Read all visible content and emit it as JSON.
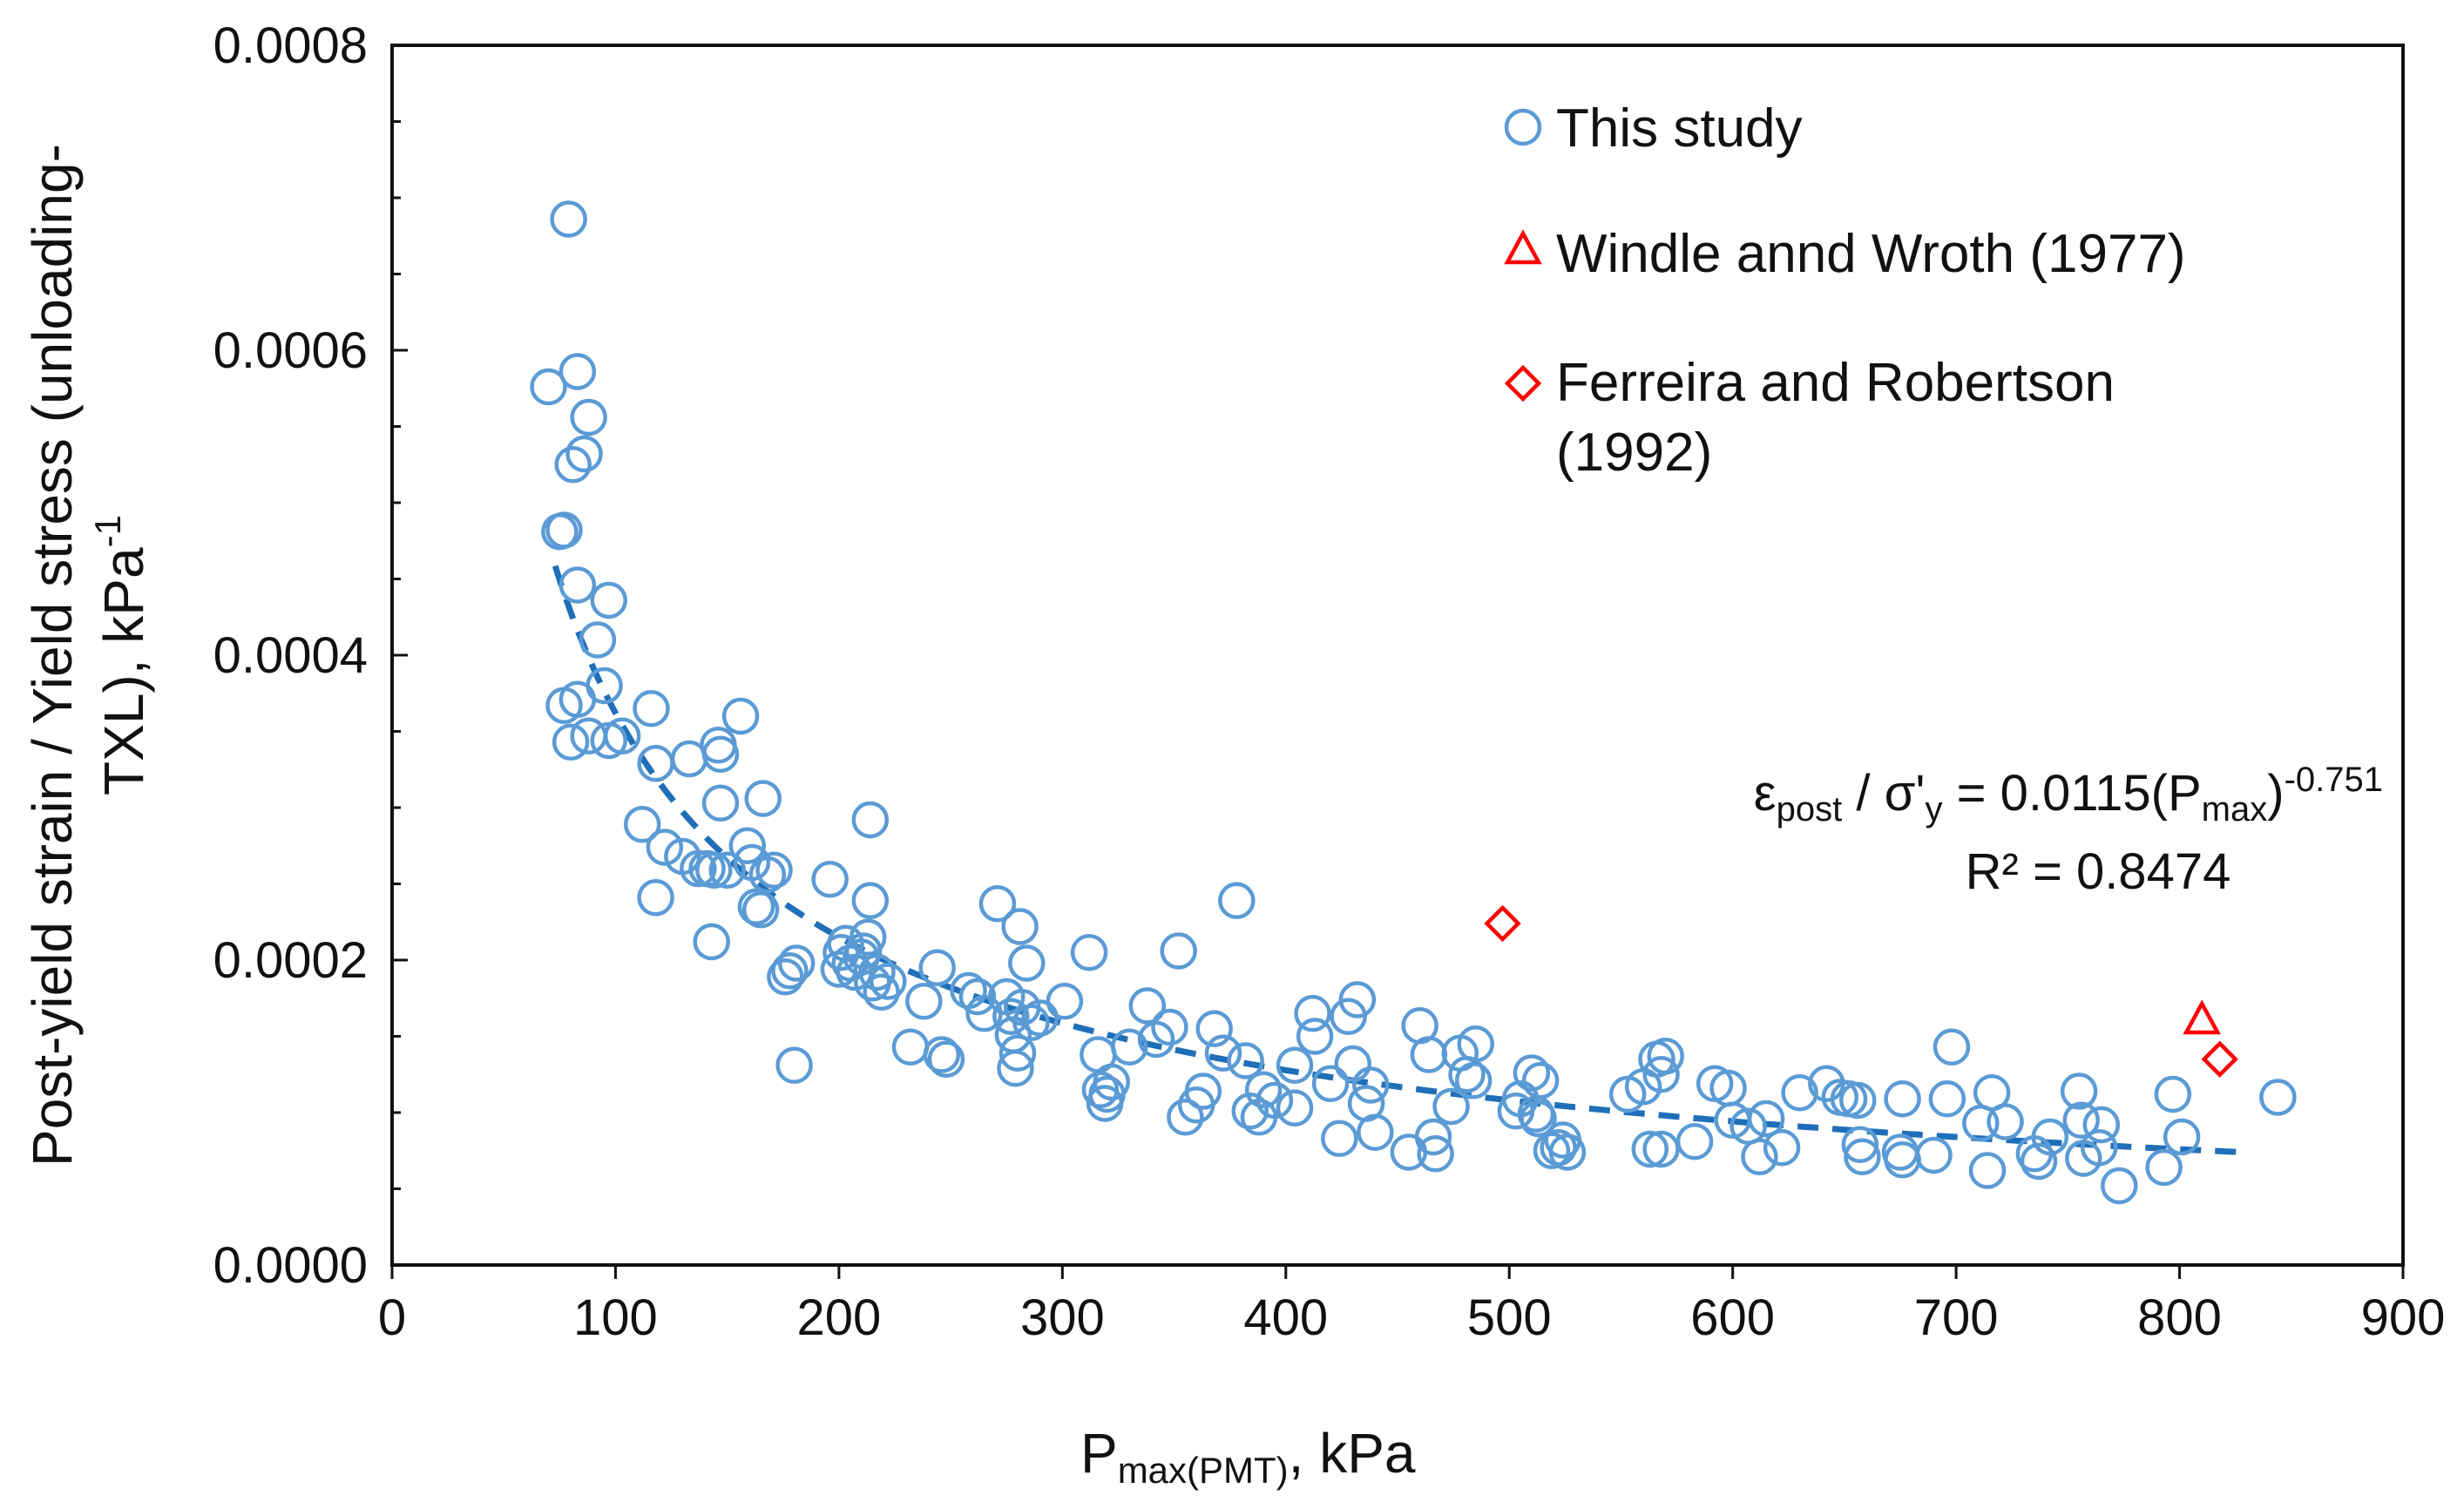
{
  "chart_data": {
    "type": "scatter",
    "title": "",
    "xlabel": {
      "main": "P",
      "sub": "max(PMT)",
      "suffix": ", kPa"
    },
    "ylabel": {
      "line1": "Post-yield strain / Yield stress (unloading-",
      "line2": "TXL), kPa",
      "sup": "-1"
    },
    "xlim": [
      0,
      900
    ],
    "ylim": [
      0,
      0.0008
    ],
    "xticks": [
      "0",
      "100",
      "200",
      "300",
      "400",
      "500",
      "600",
      "700",
      "800",
      "900"
    ],
    "yticks": [
      "0.0000",
      "0.0002",
      "0.0004",
      "0.0006",
      "0.0008"
    ],
    "grid": false,
    "legend": {
      "position": "top-right",
      "entries": [
        {
          "label": "This study",
          "marker": "circle",
          "color": "#5B9BD5"
        },
        {
          "label": "Windle annd Wroth (1977)",
          "marker": "triangle",
          "color": "#FF0000"
        },
        {
          "label": "Ferreira and Robertson",
          "label_line2": "(1992)",
          "marker": "diamond",
          "color": "#FF0000"
        }
      ]
    },
    "trendline": {
      "type": "power",
      "coefficient": 0.0115,
      "exponent": -0.751,
      "x_range": [
        73,
        830
      ],
      "color": "#1F6FB8",
      "equation": {
        "eps": "ε",
        "eps_sub": "post",
        "slash": " / σ'",
        "sig_sub": "y",
        "eq": " = 0.0115(P",
        "p_sub": "max",
        "close": ")",
        "exp": "-0.751"
      },
      "r2": "R² = 0.8474"
    },
    "series": [
      {
        "name": "This study",
        "marker": "circle",
        "color": "#5B9BD5",
        "points": [
          [
            70,
            0.000576
          ],
          [
            75,
            0.000481
          ],
          [
            77,
            0.000482
          ],
          [
            79,
            0.000686
          ],
          [
            81,
            0.000525
          ],
          [
            83,
            0.000586
          ],
          [
            83,
            0.000446
          ],
          [
            86,
            0.000532
          ],
          [
            88,
            0.000556
          ],
          [
            92,
            0.00041
          ],
          [
            97,
            0.000436
          ],
          [
            95,
            0.00038
          ],
          [
            77,
            0.000367
          ],
          [
            80,
            0.000343
          ],
          [
            83,
            0.000371
          ],
          [
            88,
            0.000347
          ],
          [
            97,
            0.000344
          ],
          [
            103,
            0.000347
          ],
          [
            116,
            0.000365
          ],
          [
            118,
            0.000329
          ],
          [
            112,
            0.000289
          ],
          [
            118,
            0.000241
          ],
          [
            122,
            0.000274
          ],
          [
            130,
            0.000268
          ],
          [
            133,
            0.000332
          ],
          [
            137,
            0.00026
          ],
          [
            141,
            0.00026
          ],
          [
            143,
            0.000212
          ],
          [
            144,
            0.000259
          ],
          [
            146,
            0.000341
          ],
          [
            147,
            0.000335
          ],
          [
            147,
            0.000303
          ],
          [
            150,
            0.000259
          ],
          [
            156,
            0.00036
          ],
          [
            159,
            0.000275
          ],
          [
            161,
            0.000264
          ],
          [
            163,
            0.000235
          ],
          [
            165,
            0.000233
          ],
          [
            166,
            0.000306
          ],
          [
            168,
            0.000256
          ],
          [
            171,
            0.000259
          ],
          [
            176,
            0.000189
          ],
          [
            178,
            0.000193
          ],
          [
            180,
            0.000131
          ],
          [
            181,
            0.000198
          ],
          [
            196,
            0.000253
          ],
          [
            200,
            0.000194
          ],
          [
            201,
            0.000205
          ],
          [
            203,
            0.000211
          ],
          [
            205,
            0.000198
          ],
          [
            207,
            0.000192
          ],
          [
            210,
            0.000202
          ],
          [
            211,
            0.000206
          ],
          [
            213,
            0.000215
          ],
          [
            214,
            0.000239
          ],
          [
            214,
            0.000292
          ],
          [
            215,
            0.000185
          ],
          [
            217,
            0.000192
          ],
          [
            219,
            0.000179
          ],
          [
            222,
            0.000186
          ],
          [
            232,
            0.000143
          ],
          [
            238,
            0.000173
          ],
          [
            244,
            0.000195
          ],
          [
            246,
            0.000138
          ],
          [
            248,
            0.000135
          ],
          [
            258,
            0.00018
          ],
          [
            262,
            0.000176
          ],
          [
            265,
            0.000165
          ],
          [
            271,
            0.000237
          ],
          [
            275,
            0.000176
          ],
          [
            277,
            0.000163
          ],
          [
            278,
            0.000151
          ],
          [
            279,
            0.000129
          ],
          [
            280,
            0.000139
          ],
          [
            281,
            0.000222
          ],
          [
            282,
            0.000169
          ],
          [
            284,
            0.000198
          ],
          [
            286,
            0.000159
          ],
          [
            290,
            0.000162
          ],
          [
            301,
            0.000173
          ],
          [
            312,
            0.000205
          ],
          [
            316,
            0.000138
          ],
          [
            317,
            0.000115
          ],
          [
            319,
            0.000106
          ],
          [
            320,
            0.000112
          ],
          [
            322,
            0.00012
          ],
          [
            330,
            0.000143
          ],
          [
            338,
            0.00017
          ],
          [
            342,
            0.000148
          ],
          [
            348,
            0.000156
          ],
          [
            352,
            0.000206
          ],
          [
            355,
            9.7e-05
          ],
          [
            360,
            0.000105
          ],
          [
            363,
            0.000114
          ],
          [
            368,
            0.000155
          ],
          [
            372,
            0.000139
          ],
          [
            378,
            0.000239
          ],
          [
            382,
            0.000134
          ],
          [
            384,
            0.000101
          ],
          [
            388,
            9.7e-05
          ],
          [
            390,
            0.000115
          ],
          [
            395,
            0.000108
          ],
          [
            404,
            0.000103
          ],
          [
            404,
            0.000131
          ],
          [
            412,
            0.000165
          ],
          [
            413,
            0.00015
          ],
          [
            420,
            0.000119
          ],
          [
            424,
            8.3e-05
          ],
          [
            428,
            0.000163
          ],
          [
            430,
            0.000132
          ],
          [
            432,
            0.000174
          ],
          [
            436,
            0.000106
          ],
          [
            438,
            0.000118
          ],
          [
            440,
            8.7e-05
          ],
          [
            455,
            7.4e-05
          ],
          [
            460,
            0.000157
          ],
          [
            464,
            0.000138
          ],
          [
            466,
            8.4e-05
          ],
          [
            467,
            7.3e-05
          ],
          [
            474,
            0.000104
          ],
          [
            478,
            0.000139
          ],
          [
            481,
            0.000125
          ],
          [
            484,
            0.000121
          ],
          [
            485,
            0.000145
          ],
          [
            503,
            0.000101
          ],
          [
            505,
            0.000109
          ],
          [
            510,
            0.000126
          ],
          [
            512,
            9.9e-05
          ],
          [
            513,
            9.6e-05
          ],
          [
            514,
            0.000121
          ],
          [
            519,
            7.5e-05
          ],
          [
            522,
            7.7e-05
          ],
          [
            524,
            8.2e-05
          ],
          [
            526,
            7.4e-05
          ],
          [
            553,
            0.000112
          ],
          [
            560,
            0.000117
          ],
          [
            563,
            7.6e-05
          ],
          [
            566,
            0.000135
          ],
          [
            568,
            0.000125
          ],
          [
            568,
            7.6e-05
          ],
          [
            570,
            0.000137
          ],
          [
            583,
            8.1e-05
          ],
          [
            592,
            0.000119
          ],
          [
            598,
            0.000116
          ],
          [
            600,
            9.5e-05
          ],
          [
            607,
            9.1e-05
          ],
          [
            612,
            7.1e-05
          ],
          [
            615,
            9.6e-05
          ],
          [
            622,
            7.7e-05
          ],
          [
            630,
            0.000113
          ],
          [
            642,
            0.000119
          ],
          [
            648,
            0.00011
          ],
          [
            652,
            0.000109
          ],
          [
            656,
            0.000108
          ],
          [
            657,
            7.9e-05
          ],
          [
            658,
            7.1e-05
          ],
          [
            676,
            0.000109
          ],
          [
            675,
            7.4e-05
          ],
          [
            676,
            6.9e-05
          ],
          [
            690,
            7.2e-05
          ],
          [
            696,
            0.000109
          ],
          [
            698,
            0.000143
          ],
          [
            711,
            9.3e-05
          ],
          [
            714,
            6.2e-05
          ],
          [
            716,
            0.000113
          ],
          [
            722,
            9.4e-05
          ],
          [
            735,
            7.3e-05
          ],
          [
            737,
            6.8e-05
          ],
          [
            742,
            8.4e-05
          ],
          [
            755,
            0.000114
          ],
          [
            756,
            9.5e-05
          ],
          [
            757,
            7e-05
          ],
          [
            764,
            7.7e-05
          ],
          [
            765,
            9.2e-05
          ],
          [
            773,
            5.2e-05
          ],
          [
            793,
            6.4e-05
          ],
          [
            797,
            0.000112
          ],
          [
            801,
            8.4e-05
          ],
          [
            844,
            0.00011
          ]
        ]
      },
      {
        "name": "Windle annd Wroth (1977)",
        "marker": "triangle",
        "color": "#FF0000",
        "points": [
          [
            810,
            0.00016
          ]
        ]
      },
      {
        "name": "Ferreira and Robertson (1992)",
        "marker": "diamond",
        "color": "#FF0000",
        "points": [
          [
            497,
            0.000224
          ],
          [
            818,
            0.000135
          ]
        ]
      }
    ]
  }
}
